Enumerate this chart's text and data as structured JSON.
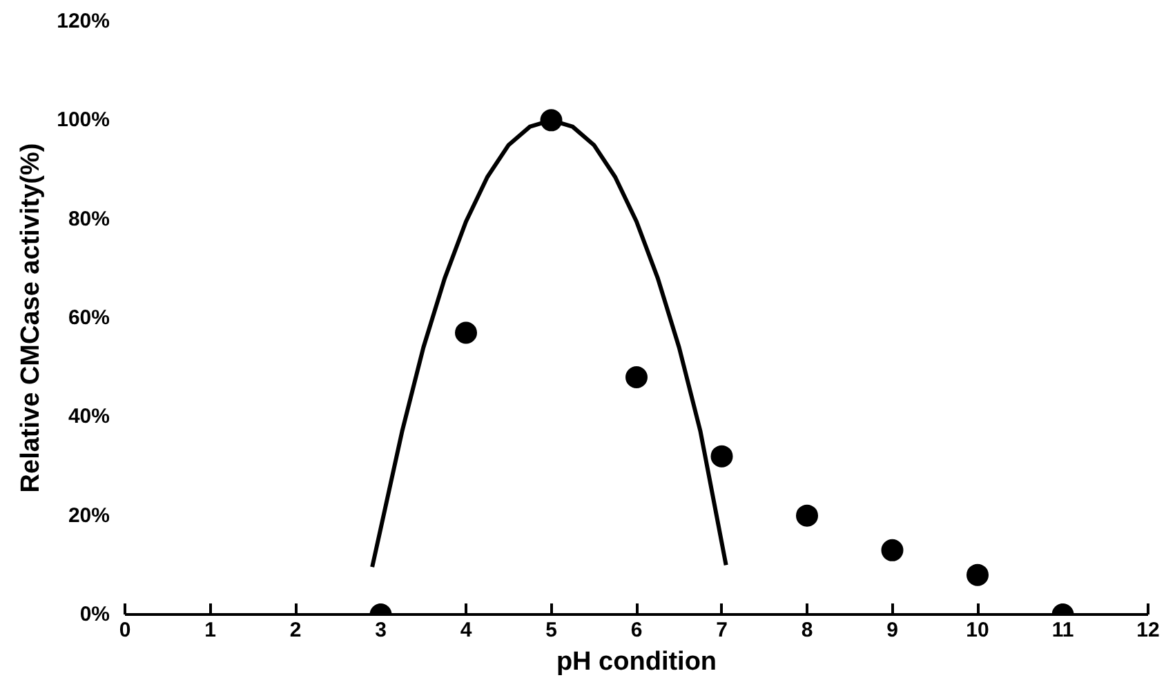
{
  "chart_data": {
    "type": "scatter",
    "xlabel": "pH condition",
    "ylabel": "Relative CMCase activity(%)",
    "x": [
      3,
      4,
      5,
      6,
      7,
      8,
      9,
      10,
      11
    ],
    "series": [
      {
        "color": "#000000",
        "marker": "circle",
        "values": [
          0,
          57,
          100,
          48,
          32,
          20,
          13,
          8,
          0
        ]
      },
      {
        "type": "line",
        "color": "#000000",
        "x": [
          2.9,
          3.25,
          3.5,
          3.75,
          4,
          4.25,
          4.5,
          4.75,
          5,
          5.25,
          5.5,
          5.75,
          6,
          6.25,
          6.5,
          6.75,
          7.05
        ],
        "values": [
          9.6,
          37,
          54,
          68,
          79.5,
          88.5,
          95,
          98.7,
          100,
          98.7,
          95,
          88.5,
          79.5,
          68,
          54,
          37,
          10
        ],
        "marker": "none",
        "line_style": "solid"
      }
    ],
    "xlim": [
      0,
      12
    ],
    "xticks": [
      0,
      1,
      2,
      3,
      4,
      5,
      6,
      7,
      8,
      9,
      10,
      11,
      12
    ],
    "ylim": [
      0,
      120
    ],
    "yticks": [
      {
        "value": 0,
        "label": "0%"
      },
      {
        "value": 20,
        "label": "20%"
      },
      {
        "value": 40,
        "label": "40%"
      },
      {
        "value": 60,
        "label": "60%"
      },
      {
        "value": 80,
        "label": "80%"
      },
      {
        "value": 100,
        "label": "100%"
      },
      {
        "value": 120,
        "label": "120%"
      }
    ],
    "grid": false
  }
}
